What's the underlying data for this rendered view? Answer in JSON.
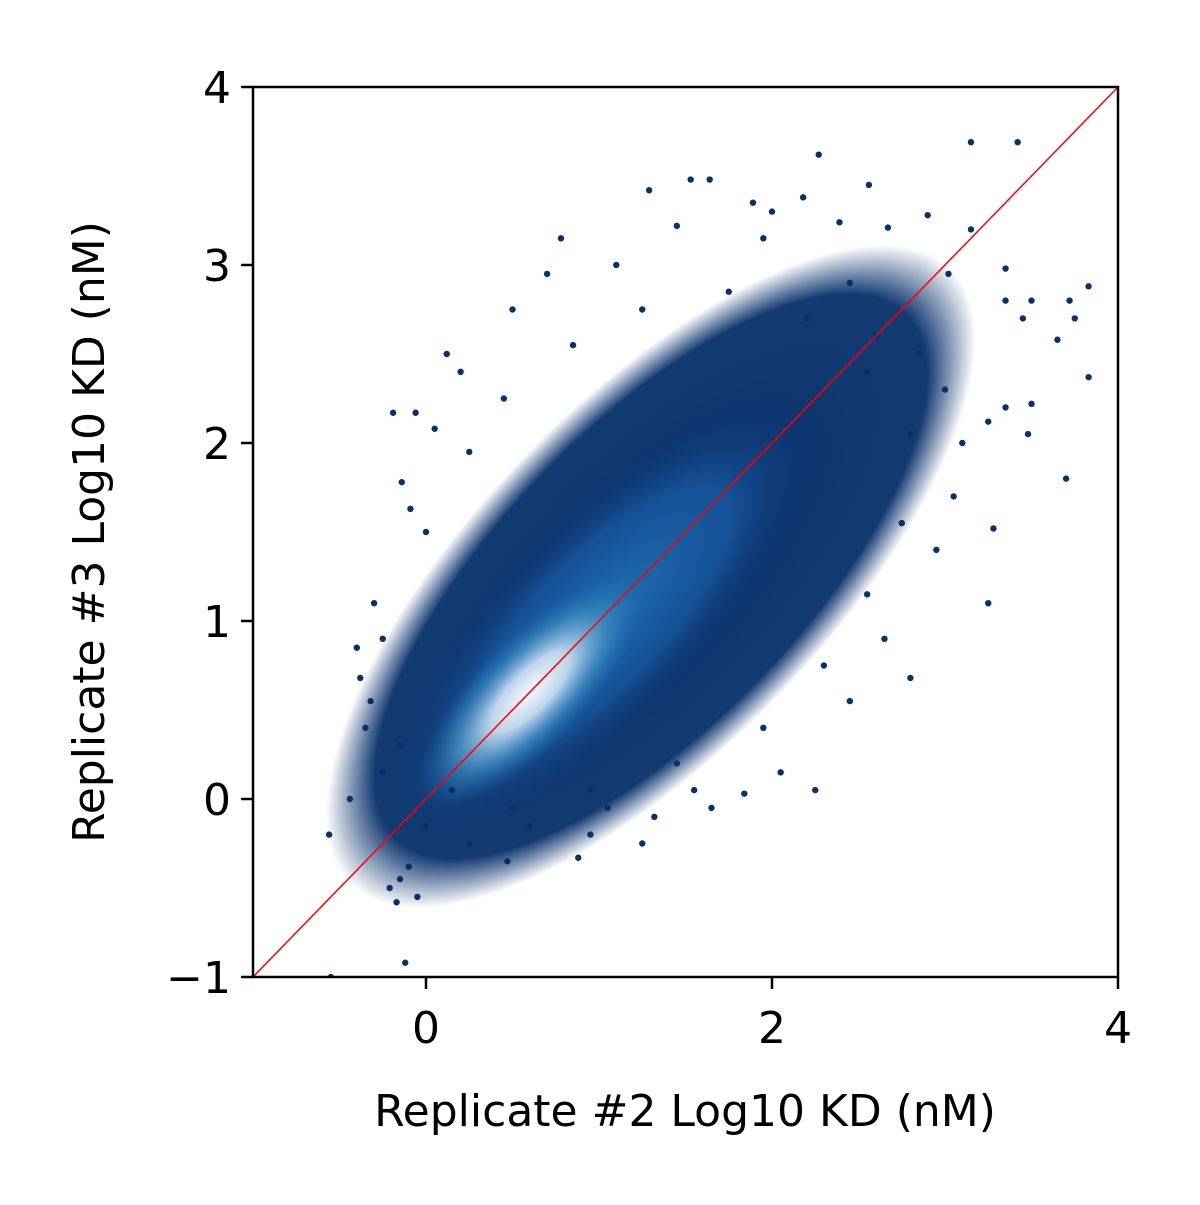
{
  "chart_data": {
    "type": "scatter",
    "title": "",
    "xlabel": "Replicate #2 Log10 KD (nM)",
    "ylabel": "Replicate #3 Log10 KD (nM)",
    "xlim": [
      -1,
      4
    ],
    "ylim": [
      -1,
      4
    ],
    "x_ticks": [
      0,
      2,
      4
    ],
    "x_tick_labels": [
      "0",
      "2",
      "4"
    ],
    "y_ticks": [
      -1,
      0,
      1,
      2,
      3,
      4
    ],
    "y_tick_labels": [
      "−1",
      "0",
      "1",
      "2",
      "3",
      "4"
    ],
    "grid": false,
    "legend": "none",
    "colormap": "Blues_r (density-colored)",
    "point_color_low_density": "#08306b",
    "point_color_mid_density": "#2171b5",
    "point_color_high_density": "#f7fbff",
    "density_peak": [
      0.6,
      0.6
    ],
    "identity_line": {
      "from": [
        -1,
        -1
      ],
      "to": [
        4,
        4
      ],
      "color": "#ff0000"
    },
    "series": [
      {
        "values_xy": [
          [
            3.15,
            3.69
          ],
          [
            3.42,
            3.69
          ],
          [
            2.27,
            3.62
          ],
          [
            1.53,
            3.48
          ],
          [
            1.64,
            3.48
          ],
          [
            1.29,
            3.42
          ],
          [
            2.56,
            3.45
          ],
          [
            2.18,
            3.38
          ],
          [
            1.89,
            3.35
          ],
          [
            2.0,
            3.3
          ],
          [
            2.39,
            3.24
          ],
          [
            2.9,
            3.28
          ],
          [
            3.15,
            3.2
          ],
          [
            2.67,
            3.21
          ],
          [
            3.02,
            2.95
          ],
          [
            3.35,
            2.98
          ],
          [
            3.5,
            2.8
          ],
          [
            3.72,
            2.8
          ],
          [
            3.83,
            2.88
          ],
          [
            3.35,
            2.8
          ],
          [
            3.45,
            2.7
          ],
          [
            3.75,
            2.7
          ],
          [
            3.65,
            2.58
          ],
          [
            3.83,
            2.37
          ],
          [
            3.7,
            1.8
          ],
          [
            3.35,
            2.2
          ],
          [
            3.5,
            2.22
          ],
          [
            3.48,
            2.05
          ],
          [
            3.25,
            2.12
          ],
          [
            3.28,
            1.52
          ],
          [
            3.25,
            1.1
          ],
          [
            2.8,
            0.68
          ],
          [
            2.25,
            0.05
          ],
          [
            1.84,
            0.03
          ],
          [
            1.65,
            -0.05
          ],
          [
            1.32,
            -0.1
          ],
          [
            0.88,
            -0.33
          ],
          [
            1.25,
            -0.25
          ],
          [
            0.95,
            -0.2
          ],
          [
            0.47,
            -0.35
          ],
          [
            -0.19,
            2.17
          ],
          [
            -0.06,
            2.17
          ],
          [
            -0.14,
            1.78
          ],
          [
            -0.09,
            1.63
          ],
          [
            0.05,
            2.08
          ],
          [
            -0.12,
            -0.92
          ],
          [
            -0.56,
            -0.2
          ],
          [
            -0.55,
            -1.0
          ],
          [
            -0.44,
            0.0
          ],
          [
            -0.38,
            0.68
          ],
          [
            -0.4,
            0.85
          ],
          [
            -0.32,
            0.55
          ],
          [
            -0.21,
            -0.5
          ],
          [
            -0.15,
            -0.45
          ],
          [
            -0.1,
            -0.38
          ],
          [
            -0.17,
            -0.58
          ],
          [
            -0.05,
            -0.55
          ],
          [
            -0.25,
            0.9
          ],
          [
            -0.3,
            1.1
          ],
          [
            0.12,
            2.5
          ],
          [
            0.2,
            2.4
          ],
          [
            0.5,
            2.75
          ],
          [
            0.7,
            2.95
          ],
          [
            0.78,
            3.15
          ],
          [
            1.1,
            3.0
          ],
          [
            1.45,
            3.22
          ],
          [
            1.95,
            3.15
          ],
          [
            2.45,
            2.9
          ],
          [
            2.6,
            2.6
          ],
          [
            2.85,
            2.5
          ],
          [
            3.0,
            2.3
          ],
          [
            3.1,
            2.0
          ],
          [
            3.05,
            1.7
          ],
          [
            2.95,
            1.4
          ],
          [
            2.65,
            0.9
          ],
          [
            2.45,
            0.55
          ],
          [
            2.05,
            0.15
          ],
          [
            1.55,
            0.05
          ],
          [
            1.05,
            -0.05
          ],
          [
            0.6,
            -0.15
          ],
          [
            0.25,
            -0.25
          ],
          [
            0.0,
            -0.15
          ],
          [
            -0.25,
            0.15
          ],
          [
            -0.35,
            0.4
          ],
          [
            0.0,
            1.5
          ],
          [
            0.25,
            1.95
          ],
          [
            0.45,
            2.25
          ],
          [
            0.85,
            2.55
          ],
          [
            1.25,
            2.75
          ],
          [
            1.75,
            2.85
          ],
          [
            2.2,
            2.7
          ],
          [
            2.55,
            2.4
          ],
          [
            2.8,
            2.05
          ],
          [
            2.75,
            1.55
          ],
          [
            2.55,
            1.15
          ],
          [
            2.3,
            0.75
          ],
          [
            1.95,
            0.4
          ],
          [
            1.45,
            0.2
          ],
          [
            0.95,
            0.05
          ],
          [
            0.5,
            -0.05
          ],
          [
            0.15,
            0.05
          ],
          [
            -0.15,
            0.3
          ]
        ]
      }
    ]
  }
}
